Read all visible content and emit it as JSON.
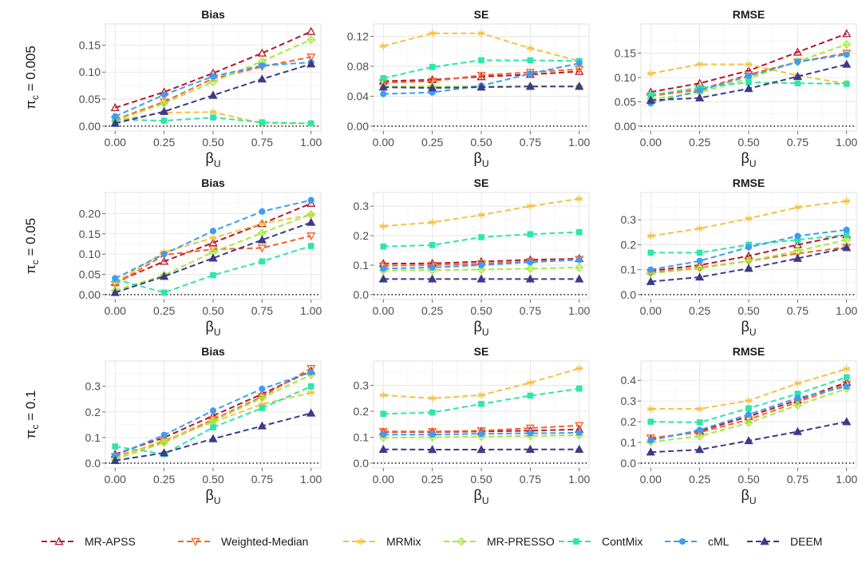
{
  "figure": {
    "x_label": {
      "main": "β",
      "sub": "U"
    },
    "row_labels": [
      {
        "main": "π",
        "sub": "c",
        "rest": " = 0.005"
      },
      {
        "main": "π",
        "sub": "c",
        "rest": " = 0.05"
      },
      {
        "main": "π",
        "sub": "c",
        "rest": " = 0.1"
      }
    ],
    "column_titles": [
      "Bias",
      "SE",
      "RMSE"
    ]
  },
  "chart_data": {
    "type": "line",
    "x": [
      0,
      0.25,
      0.5,
      0.75,
      1
    ],
    "x_tick_labels": [
      "0.00",
      "0.25",
      "0.50",
      "0.75",
      "1.00"
    ],
    "xlabel": "βU",
    "legend_position": "bottom",
    "series_styles": [
      {
        "name": "MR-APSS",
        "color": "#b2182b",
        "marker": "triangle-up-open"
      },
      {
        "name": "Weighted-Median",
        "color": "#f4622a",
        "marker": "triangle-down-open"
      },
      {
        "name": "MRMix",
        "color": "#f5c142",
        "marker": "asterisk"
      },
      {
        "name": "MR-PRESSO",
        "color": "#a6e83c",
        "marker": "diamond-open"
      },
      {
        "name": "ContMix",
        "color": "#2ee6a8",
        "marker": "square"
      },
      {
        "name": "cML",
        "color": "#3d9df2",
        "marker": "circle"
      },
      {
        "name": "DEEM",
        "color": "#3c3a8a",
        "marker": "triangle-up"
      }
    ],
    "panels": [
      {
        "row": 0,
        "col": 0,
        "title": "Bias",
        "ylim": [
          0,
          0.18
        ],
        "yticks": [
          0,
          0.05,
          0.1,
          0.15
        ],
        "ytick_labels": [
          "0.00",
          "0.05",
          "0.10",
          "0.15"
        ],
        "series": [
          {
            "name": "MR-APSS",
            "values": [
              0.034,
              0.063,
              0.098,
              0.135,
              0.175
            ]
          },
          {
            "name": "Weighted-Median",
            "values": [
              0.012,
              0.045,
              0.088,
              0.11,
              0.128
            ]
          },
          {
            "name": "MRMix",
            "values": [
              0.01,
              0.025,
              0.026,
              0.005,
              0.005
            ]
          },
          {
            "name": "MR-PRESSO",
            "values": [
              0.01,
              0.042,
              0.082,
              0.12,
              0.16
            ]
          },
          {
            "name": "ContMix",
            "values": [
              0.012,
              0.01,
              0.016,
              0.007,
              0.005
            ]
          },
          {
            "name": "cML",
            "values": [
              0.018,
              0.058,
              0.092,
              0.112,
              0.118
            ]
          },
          {
            "name": "DEEM",
            "values": [
              0.005,
              0.027,
              0.057,
              0.087,
              0.115
            ]
          }
        ]
      },
      {
        "row": 0,
        "col": 1,
        "title": "SE",
        "ylim": [
          0,
          0.13
        ],
        "yticks": [
          0,
          0.04,
          0.08,
          0.12
        ],
        "ytick_labels": [
          "0.00",
          "0.04",
          "0.08",
          "0.12"
        ],
        "series": [
          {
            "name": "MR-APSS",
            "values": [
              0.06,
              0.062,
              0.066,
              0.069,
              0.073
            ]
          },
          {
            "name": "Weighted-Median",
            "values": [
              0.058,
              0.06,
              0.068,
              0.072,
              0.076
            ]
          },
          {
            "name": "MRMix",
            "values": [
              0.107,
              0.124,
              0.124,
              0.104,
              0.087
            ]
          },
          {
            "name": "MR-PRESSO",
            "values": [
              0.053,
              0.053,
              0.053,
              0.053,
              0.053
            ]
          },
          {
            "name": "ContMix",
            "values": [
              0.064,
              0.079,
              0.088,
              0.088,
              0.087
            ]
          },
          {
            "name": "cML",
            "values": [
              0.043,
              0.045,
              0.054,
              0.07,
              0.084
            ]
          },
          {
            "name": "DEEM",
            "values": [
              0.052,
              0.051,
              0.052,
              0.053,
              0.053
            ]
          }
        ]
      },
      {
        "row": 0,
        "col": 2,
        "title": "RMSE",
        "ylim": [
          0,
          0.2
        ],
        "yticks": [
          0,
          0.05,
          0.1,
          0.15
        ],
        "ytick_labels": [
          "0.00",
          "0.05",
          "0.10",
          "0.15"
        ],
        "series": [
          {
            "name": "MR-APSS",
            "values": [
              0.07,
              0.088,
              0.114,
              0.152,
              0.19
            ]
          },
          {
            "name": "Weighted-Median",
            "values": [
              0.062,
              0.075,
              0.106,
              0.132,
              0.15
            ]
          },
          {
            "name": "MRMix",
            "values": [
              0.108,
              0.127,
              0.127,
              0.104,
              0.087
            ]
          },
          {
            "name": "MR-PRESSO",
            "values": [
              0.055,
              0.069,
              0.098,
              0.133,
              0.168
            ]
          },
          {
            "name": "ContMix",
            "values": [
              0.064,
              0.079,
              0.09,
              0.088,
              0.087
            ]
          },
          {
            "name": "cML",
            "values": [
              0.047,
              0.073,
              0.103,
              0.132,
              0.147
            ]
          },
          {
            "name": "DEEM",
            "values": [
              0.053,
              0.058,
              0.077,
              0.102,
              0.127
            ]
          }
        ]
      },
      {
        "row": 1,
        "col": 0,
        "title": "Bias",
        "ylim": [
          0,
          0.24
        ],
        "yticks": [
          0,
          0.05,
          0.1,
          0.15,
          0.2
        ],
        "ytick_labels": [
          "0.00",
          "0.05",
          "0.10",
          "0.15",
          "0.20"
        ],
        "series": [
          {
            "name": "MR-APSS",
            "values": [
              0.03,
              0.082,
              0.128,
              0.175,
              0.225
            ]
          },
          {
            "name": "Weighted-Median",
            "values": [
              0.025,
              0.098,
              0.112,
              0.115,
              0.145
            ]
          },
          {
            "name": "MRMix",
            "values": [
              0.03,
              0.105,
              0.14,
              0.175,
              0.197
            ]
          },
          {
            "name": "MR-PRESSO",
            "values": [
              0.01,
              0.048,
              0.105,
              0.152,
              0.198
            ]
          },
          {
            "name": "ContMix",
            "values": [
              0.038,
              0.005,
              0.048,
              0.082,
              0.12
            ]
          },
          {
            "name": "cML",
            "values": [
              0.04,
              0.1,
              0.157,
              0.205,
              0.233
            ]
          },
          {
            "name": "DEEM",
            "values": [
              0.005,
              0.045,
              0.09,
              0.135,
              0.178
            ]
          }
        ]
      },
      {
        "row": 1,
        "col": 1,
        "title": "SE",
        "ylim": [
          0,
          0.33
        ],
        "yticks": [
          0,
          0.1,
          0.2,
          0.3
        ],
        "ytick_labels": [
          "0.0",
          "0.1",
          "0.2",
          "0.3"
        ],
        "series": [
          {
            "name": "MR-APSS",
            "values": [
              0.105,
              0.106,
              0.112,
              0.118,
              0.122
            ]
          },
          {
            "name": "Weighted-Median",
            "values": [
              0.098,
              0.1,
              0.105,
              0.112,
              0.12
            ]
          },
          {
            "name": "MRMix",
            "values": [
              0.232,
              0.245,
              0.27,
              0.3,
              0.325
            ]
          },
          {
            "name": "MR-PRESSO",
            "values": [
              0.082,
              0.083,
              0.085,
              0.088,
              0.092
            ]
          },
          {
            "name": "ContMix",
            "values": [
              0.163,
              0.168,
              0.195,
              0.205,
              0.212
            ]
          },
          {
            "name": "cML",
            "values": [
              0.088,
              0.092,
              0.1,
              0.11,
              0.118
            ]
          },
          {
            "name": "DEEM",
            "values": [
              0.053,
              0.053,
              0.053,
              0.053,
              0.053
            ]
          }
        ]
      },
      {
        "row": 1,
        "col": 2,
        "title": "RMSE",
        "ylim": [
          0,
          0.39
        ],
        "yticks": [
          0,
          0.1,
          0.2,
          0.3
        ],
        "ytick_labels": [
          "0.0",
          "0.1",
          "0.2",
          "0.3"
        ],
        "series": [
          {
            "name": "MR-APSS",
            "values": [
              0.095,
              0.118,
              0.155,
              0.2,
              0.24
            ]
          },
          {
            "name": "Weighted-Median",
            "values": [
              0.088,
              0.108,
              0.135,
              0.165,
              0.19
            ]
          },
          {
            "name": "MRMix",
            "values": [
              0.235,
              0.265,
              0.305,
              0.35,
              0.375
            ]
          },
          {
            "name": "MR-PRESSO",
            "values": [
              0.085,
              0.105,
              0.135,
              0.175,
              0.22
            ]
          },
          {
            "name": "ContMix",
            "values": [
              0.168,
              0.168,
              0.2,
              0.22,
              0.24
            ]
          },
          {
            "name": "cML",
            "values": [
              0.1,
              0.135,
              0.19,
              0.235,
              0.26
            ]
          },
          {
            "name": "DEEM",
            "values": [
              0.052,
              0.07,
              0.105,
              0.145,
              0.188
            ]
          }
        ]
      },
      {
        "row": 2,
        "col": 0,
        "title": "Bias",
        "ylim": [
          0,
          0.38
        ],
        "yticks": [
          0,
          0.1,
          0.2,
          0.3
        ],
        "ytick_labels": [
          "0.0",
          "0.1",
          "0.2",
          "0.3"
        ],
        "series": [
          {
            "name": "MR-APSS",
            "values": [
              0.035,
              0.1,
              0.185,
              0.27,
              0.36
            ]
          },
          {
            "name": "Weighted-Median",
            "values": [
              0.025,
              0.085,
              0.17,
              0.26,
              0.37
            ]
          },
          {
            "name": "MRMix",
            "values": [
              0.02,
              0.09,
              0.16,
              0.23,
              0.275
            ]
          },
          {
            "name": "MR-PRESSO",
            "values": [
              0.015,
              0.08,
              0.165,
              0.255,
              0.345
            ]
          },
          {
            "name": "ContMix",
            "values": [
              0.065,
              0.035,
              0.14,
              0.215,
              0.3
            ]
          },
          {
            "name": "cML",
            "values": [
              0.03,
              0.11,
              0.205,
              0.29,
              0.355
            ]
          },
          {
            "name": "DEEM",
            "values": [
              0.01,
              0.04,
              0.095,
              0.145,
              0.195
            ]
          }
        ]
      },
      {
        "row": 2,
        "col": 1,
        "title": "SE",
        "ylim": [
          0,
          0.375
        ],
        "yticks": [
          0,
          0.1,
          0.2,
          0.3
        ],
        "ytick_labels": [
          "0.0",
          "0.1",
          "0.2",
          "0.3"
        ],
        "series": [
          {
            "name": "MR-APSS",
            "values": [
              0.12,
              0.12,
              0.122,
              0.125,
              0.13
            ]
          },
          {
            "name": "Weighted-Median",
            "values": [
              0.122,
              0.122,
              0.125,
              0.135,
              0.145
            ]
          },
          {
            "name": "MRMix",
            "values": [
              0.262,
              0.25,
              0.262,
              0.31,
              0.365
            ]
          },
          {
            "name": "MR-PRESSO",
            "values": [
              0.098,
              0.1,
              0.102,
              0.105,
              0.108
            ]
          },
          {
            "name": "ContMix",
            "values": [
              0.19,
              0.195,
              0.228,
              0.26,
              0.287
            ]
          },
          {
            "name": "cML",
            "values": [
              0.11,
              0.11,
              0.113,
              0.115,
              0.117
            ]
          },
          {
            "name": "DEEM",
            "values": [
              0.053,
              0.052,
              0.052,
              0.053,
              0.053
            ]
          }
        ]
      },
      {
        "row": 2,
        "col": 2,
        "title": "RMSE",
        "ylim": [
          0,
          0.47
        ],
        "yticks": [
          0,
          0.1,
          0.2,
          0.3,
          0.4
        ],
        "ytick_labels": [
          "0.0",
          "0.1",
          "0.2",
          "0.3",
          "0.4"
        ],
        "series": [
          {
            "name": "MR-APSS",
            "values": [
              0.115,
              0.155,
              0.225,
              0.305,
              0.39
            ]
          },
          {
            "name": "Weighted-Median",
            "values": [
              0.122,
              0.148,
              0.21,
              0.295,
              0.38
            ]
          },
          {
            "name": "MRMix",
            "values": [
              0.262,
              0.262,
              0.302,
              0.385,
              0.455
            ]
          },
          {
            "name": "MR-PRESSO",
            "values": [
              0.102,
              0.13,
              0.195,
              0.28,
              0.36
            ]
          },
          {
            "name": "ContMix",
            "values": [
              0.2,
              0.197,
              0.265,
              0.335,
              0.415
            ]
          },
          {
            "name": "cML",
            "values": [
              0.11,
              0.16,
              0.235,
              0.315,
              0.37
            ]
          },
          {
            "name": "DEEM",
            "values": [
              0.053,
              0.065,
              0.108,
              0.152,
              0.2
            ]
          }
        ]
      }
    ]
  }
}
